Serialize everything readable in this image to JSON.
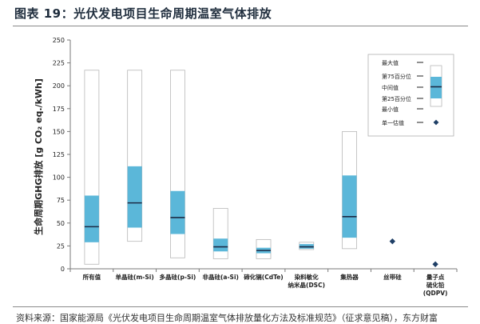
{
  "figure_title": "图表 19：光伏发电项目生命周期温室气体排放",
  "source_note": "资料来源：国家能源局《光伏发电项目生命周期温室气体排放量化方法及标准规范》（征求意见稿），东方财富",
  "chart_data": {
    "type": "box",
    "ylabel": "生命周期GHG排放 [g CO₂ eq./kWh]",
    "ylim": [
      0,
      250
    ],
    "yticks": [
      0,
      25,
      50,
      75,
      100,
      125,
      150,
      175,
      200,
      225,
      250
    ],
    "grid": false,
    "legend_position": "top-right",
    "colors": {
      "box_fill": "#5bb7d9",
      "whisker_fill": "#ffffff",
      "outline": "#b8b8b8",
      "median": "#1c2a44",
      "marker": "#1f3f66"
    },
    "categories": [
      {
        "label": "所有值",
        "label2": "",
        "min": 5,
        "p25": 29,
        "median": 46,
        "p75": 80,
        "max": 217
      },
      {
        "label": "单晶硅(m-Si)",
        "label2": "",
        "min": 30,
        "p25": 45,
        "median": 72,
        "p75": 112,
        "max": 217
      },
      {
        "label": "多晶硅(p-Si)",
        "label2": "",
        "min": 12,
        "p25": 38,
        "median": 56,
        "p75": 85,
        "max": 217
      },
      {
        "label": "非晶硅(a-Si)",
        "label2": "",
        "min": 11,
        "p25": 19,
        "median": 24,
        "p75": 33,
        "max": 66
      },
      {
        "label": "碲化镉(CdTe)",
        "label2": "",
        "min": 11,
        "p25": 17,
        "median": 20,
        "p75": 23,
        "max": 32
      },
      {
        "label": "染料敏化",
        "label2": "纳米晶(DSC)",
        "min": 21,
        "p25": 22,
        "median": 24,
        "p75": 27,
        "max": 29
      },
      {
        "label": "集热器",
        "label2": "",
        "min": 22,
        "p25": 34,
        "median": 57,
        "p75": 102,
        "max": 150
      },
      {
        "label": "丝带硅",
        "label2": "",
        "single": 30
      },
      {
        "label": "量子点",
        "label2": "硫化铅",
        "label3": "(QDPV)",
        "single": 5
      }
    ],
    "legend": {
      "items": [
        {
          "label": "最大值"
        },
        {
          "label": "第75百分位"
        },
        {
          "label": "中间值"
        },
        {
          "label": "第25百分位"
        },
        {
          "label": "最小值"
        }
      ],
      "single_label": "单一估值"
    }
  }
}
